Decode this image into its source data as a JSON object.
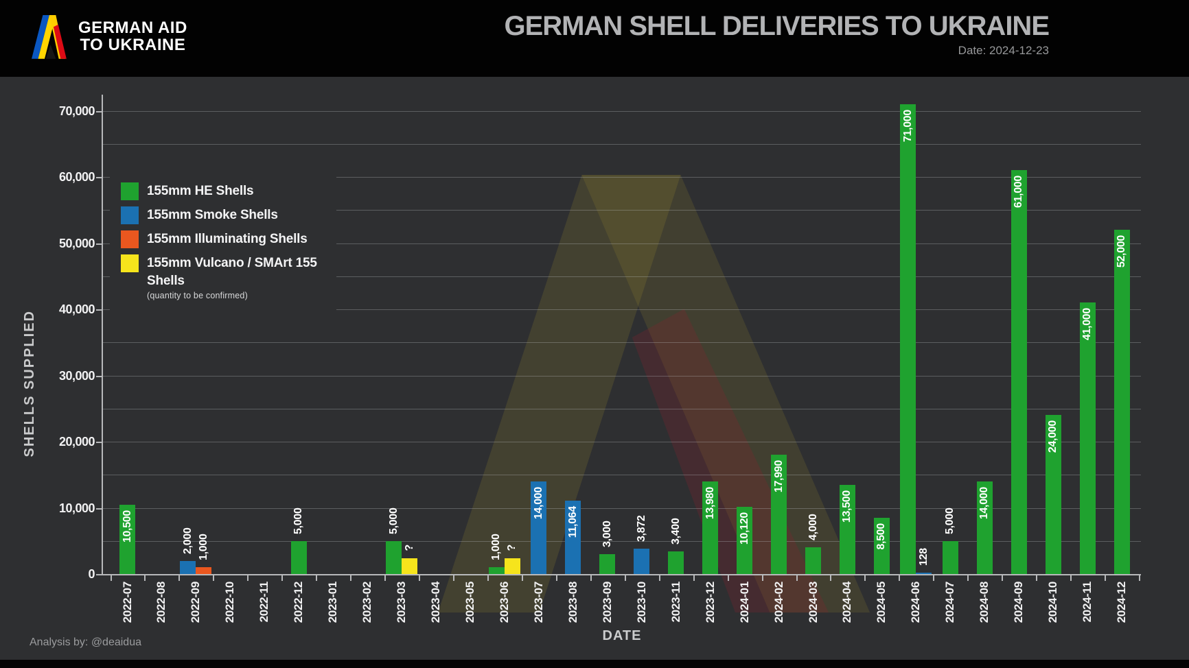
{
  "header": {
    "logo_line1": "GERMAN AID",
    "logo_line2": "TO UKRAINE",
    "title": "GERMAN SHELL DELIVERIES TO UKRAINE",
    "date_label": "Date: 2024-12-23"
  },
  "footer": {
    "credit": "Analysis by: @deaidua"
  },
  "colors": {
    "background": "#2e2f31",
    "header_bg": "#020202",
    "grid": "rgba(188,190,194,0.33)",
    "axis": "#b8b9bb",
    "tick_text": "#f2f2f3",
    "title_text": "#b2b3b5",
    "series": {
      "he": "#1fa22f",
      "smoke": "#1b71b2",
      "illuminating": "#ea571f",
      "vulcano": "#f6e41c"
    },
    "ukraine_blue": "#0a57c2",
    "ukraine_yellow": "#ffd500",
    "german_red": "#dd0b15",
    "german_gold": "#ffce00"
  },
  "legend": {
    "items": [
      {
        "key": "he",
        "label": "155mm HE Shells",
        "note": ""
      },
      {
        "key": "smoke",
        "label": "155mm Smoke Shells",
        "note": ""
      },
      {
        "key": "illuminating",
        "label": "155mm Illuminating Shells",
        "note": ""
      },
      {
        "key": "vulcano",
        "label": "155mm Vulcano / SMArt 155 Shells",
        "note": "(quantity to be confirmed)"
      }
    ]
  },
  "chart_data": {
    "type": "bar",
    "title": "GERMAN SHELL DELIVERIES TO UKRAINE",
    "xlabel": "DATE",
    "ylabel": "SHELLS  SUPPLIED",
    "ylim": [
      0,
      72500
    ],
    "grid_step": 5000,
    "ytick_step": 10000,
    "ytick_labels": [
      "0",
      "10,000",
      "20,000",
      "30,000",
      "40,000",
      "50,000",
      "60,000",
      "70,000"
    ],
    "grid": true,
    "legend_position": "top-left",
    "categories": [
      "2022-07",
      "2022-08",
      "2022-09",
      "2022-10",
      "2022-11",
      "2022-12",
      "2023-01",
      "2023-02",
      "2023-03",
      "2023-04",
      "2023-05",
      "2023-06",
      "2023-07",
      "2023-08",
      "2023-09",
      "2023-10",
      "2023-11",
      "2023-12",
      "2024-01",
      "2024-02",
      "2024-03",
      "2024-04",
      "2024-05",
      "2024-06",
      "2024-07",
      "2024-08",
      "2024-09",
      "2024-10",
      "2024-11",
      "2024-12"
    ],
    "deliveries": [
      {
        "month": "2022-07",
        "bars": [
          {
            "series": "he",
            "value": 10500,
            "label": "10,500",
            "label_pos": "inside"
          }
        ]
      },
      {
        "month": "2022-08",
        "bars": []
      },
      {
        "month": "2022-09",
        "bars": [
          {
            "series": "smoke",
            "value": 2000,
            "label": "2,000",
            "label_pos": "above"
          },
          {
            "series": "illuminating",
            "value": 1000,
            "label": "1,000",
            "label_pos": "above"
          }
        ]
      },
      {
        "month": "2022-10",
        "bars": []
      },
      {
        "month": "2022-11",
        "bars": []
      },
      {
        "month": "2022-12",
        "bars": [
          {
            "series": "he",
            "value": 5000,
            "label": "5,000",
            "label_pos": "above"
          }
        ]
      },
      {
        "month": "2023-01",
        "bars": []
      },
      {
        "month": "2023-02",
        "bars": []
      },
      {
        "month": "2023-03",
        "bars": [
          {
            "series": "he",
            "value": 5000,
            "label": "5,000",
            "label_pos": "above"
          },
          {
            "series": "vulcano",
            "value": null,
            "label": "?",
            "label_pos": "above",
            "drawn_height_units": 2400
          }
        ]
      },
      {
        "month": "2023-04",
        "bars": []
      },
      {
        "month": "2023-05",
        "bars": []
      },
      {
        "month": "2023-06",
        "bars": [
          {
            "series": "he",
            "value": 1000,
            "label": "1,000",
            "label_pos": "above"
          },
          {
            "series": "vulcano",
            "value": null,
            "label": "?",
            "label_pos": "above",
            "drawn_height_units": 2400
          }
        ]
      },
      {
        "month": "2023-07",
        "bars": [
          {
            "series": "smoke",
            "value": 14000,
            "label": "14,000",
            "label_pos": "inside"
          }
        ]
      },
      {
        "month": "2023-08",
        "bars": [
          {
            "series": "smoke",
            "value": 11064,
            "label": "11,064",
            "label_pos": "inside"
          }
        ]
      },
      {
        "month": "2023-09",
        "bars": [
          {
            "series": "he",
            "value": 3000,
            "label": "3,000",
            "label_pos": "above"
          }
        ]
      },
      {
        "month": "2023-10",
        "bars": [
          {
            "series": "smoke",
            "value": 3872,
            "label": "3,872",
            "label_pos": "above"
          }
        ]
      },
      {
        "month": "2023-11",
        "bars": [
          {
            "series": "he",
            "value": 3400,
            "label": "3,400",
            "label_pos": "above"
          }
        ]
      },
      {
        "month": "2023-12",
        "bars": [
          {
            "series": "he",
            "value": 13980,
            "label": "13,980",
            "label_pos": "inside"
          }
        ]
      },
      {
        "month": "2024-01",
        "bars": [
          {
            "series": "he",
            "value": 10120,
            "label": "10,120",
            "label_pos": "inside"
          }
        ]
      },
      {
        "month": "2024-02",
        "bars": [
          {
            "series": "he",
            "value": 17990,
            "label": "17,990",
            "label_pos": "inside"
          }
        ]
      },
      {
        "month": "2024-03",
        "bars": [
          {
            "series": "he",
            "value": 4000,
            "label": "4,000",
            "label_pos": "above"
          }
        ]
      },
      {
        "month": "2024-04",
        "bars": [
          {
            "series": "he",
            "value": 13500,
            "label": "13,500",
            "label_pos": "inside"
          }
        ]
      },
      {
        "month": "2024-05",
        "bars": [
          {
            "series": "he",
            "value": 8500,
            "label": "8,500",
            "label_pos": "inside"
          }
        ]
      },
      {
        "month": "2024-06",
        "bars": [
          {
            "series": "he",
            "value": 71000,
            "label": "71,000",
            "label_pos": "inside"
          },
          {
            "series": "smoke",
            "value": 128,
            "label": "128",
            "label_pos": "above"
          }
        ]
      },
      {
        "month": "2024-07",
        "bars": [
          {
            "series": "he",
            "value": 5000,
            "label": "5,000",
            "label_pos": "above"
          }
        ]
      },
      {
        "month": "2024-08",
        "bars": [
          {
            "series": "he",
            "value": 14000,
            "label": "14,000",
            "label_pos": "inside"
          }
        ]
      },
      {
        "month": "2024-09",
        "bars": [
          {
            "series": "he",
            "value": 61000,
            "label": "61,000",
            "label_pos": "inside"
          }
        ]
      },
      {
        "month": "2024-10",
        "bars": [
          {
            "series": "he",
            "value": 24000,
            "label": "24,000",
            "label_pos": "inside"
          }
        ]
      },
      {
        "month": "2024-11",
        "bars": [
          {
            "series": "he",
            "value": 41000,
            "label": "41,000",
            "label_pos": "inside"
          }
        ]
      },
      {
        "month": "2024-12",
        "bars": [
          {
            "series": "he",
            "value": 52000,
            "label": "52,000",
            "label_pos": "inside"
          }
        ]
      }
    ]
  }
}
